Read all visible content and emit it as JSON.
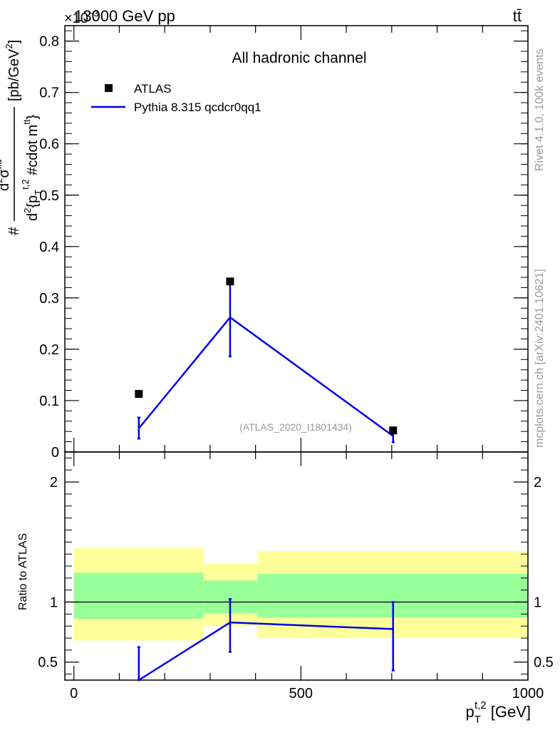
{
  "header": {
    "energy": "13000 GeV pp",
    "process": "tt̄",
    "yscale_prefix": "×10",
    "yscale_exp": "−3"
  },
  "side_labels": {
    "rivet": "Rivet 4.1.0,  100k events",
    "mcplots": "mcplots.cern.ch [arXiv:2401.10621]"
  },
  "colors": {
    "data": "#000000",
    "mc": "#0000ee",
    "band_inner": "#99ff99",
    "band_outer": "#ffff99",
    "watermark": "#999999"
  },
  "chart_data": [
    {
      "type": "scatter",
      "panel": "main",
      "title": "All hadronic channel",
      "annotation": "(ATLAS_2020_I1801434)",
      "ylabel_parts": {
        "hash": "#",
        "num_d": "d",
        "num_sup": "2",
        "num_sigma": "σ",
        "num_sub": "fid",
        "den_d": "d",
        "den_sup": "2",
        "den_brace": "{p",
        "den_psub": "T",
        "den_psup": "t,2",
        "den_cdot": " #cdot m",
        "den_msub": "tt",
        "den_close": "}",
        "units": "[pb/GeV",
        "units_sup": "2",
        "units_close": "]"
      },
      "ylim": [
        0,
        0.00083
      ],
      "xlim": [
        -20,
        1000
      ],
      "yticks": [
        {
          "v": 0,
          "label": "0"
        },
        {
          "v": 0.0001,
          "label": "0.1"
        },
        {
          "v": 0.0002,
          "label": "0.2"
        },
        {
          "v": 0.0003,
          "label": "0.3"
        },
        {
          "v": 0.0004,
          "label": "0.4"
        },
        {
          "v": 0.0005,
          "label": "0.5"
        },
        {
          "v": 0.0006,
          "label": "0.6"
        },
        {
          "v": 0.0007,
          "label": "0.7"
        },
        {
          "v": 0.0008,
          "label": "0.8"
        }
      ],
      "legend": [
        {
          "name": "ATLAS",
          "kind": "marker"
        },
        {
          "name": "Pythia 8.315 qcdcr0qq1",
          "kind": "line"
        }
      ],
      "series": [
        {
          "name": "ATLAS",
          "x": [
            143,
            344,
            703
          ],
          "y": [
            0.000113,
            0.000332,
            4.2e-05
          ]
        },
        {
          "name": "Pythia 8.315 qcdcr0qq1",
          "x": [
            143,
            344,
            703
          ],
          "y": [
            4.6e-05,
            0.000262,
            3.1e-05
          ],
          "err_lo": [
            2.6e-05,
            0.000186,
            1.9e-05
          ],
          "err_hi": [
            6.7e-05,
            0.000334,
            3.9e-05
          ]
        }
      ]
    },
    {
      "type": "line",
      "panel": "ratio",
      "ylabel": "Ratio to ATLAS",
      "xlabel_main": "p",
      "xlabel_sub": "T",
      "xlabel_sup": "t,2",
      "xlabel_units": " [GeV]",
      "ylim": [
        0.35,
        2.25
      ],
      "xlim": [
        -20,
        1000
      ],
      "xticks": [
        {
          "v": 0,
          "label": "0"
        },
        {
          "v": 500,
          "label": "500"
        },
        {
          "v": 1000,
          "label": "1000"
        }
      ],
      "yticks": [
        {
          "v": 0.5,
          "label": "0.5"
        },
        {
          "v": 1,
          "label": "1"
        },
        {
          "v": 2,
          "label": "2"
        }
      ],
      "bands": [
        {
          "x0": 0,
          "x1": 285,
          "in_lo": 0.86,
          "in_hi": 1.245,
          "out_lo": 0.68,
          "out_hi": 1.45
        },
        {
          "x0": 285,
          "x1": 405,
          "in_lo": 0.905,
          "in_hi": 1.18,
          "out_lo": 0.8,
          "out_hi": 1.32
        },
        {
          "x0": 405,
          "x1": 1000,
          "in_lo": 0.87,
          "in_hi": 1.235,
          "out_lo": 0.7,
          "out_hi": 1.425
        }
      ],
      "series": [
        {
          "name": "Pythia 8.315 qcdcr0qq1",
          "x": [
            143,
            344,
            703
          ],
          "y": [
            0.35,
            0.83,
            0.775
          ],
          "err_lo": [
            0.35,
            0.585,
            0.43
          ],
          "err_hi": [
            0.625,
            1.025,
            1.0
          ]
        }
      ]
    }
  ]
}
